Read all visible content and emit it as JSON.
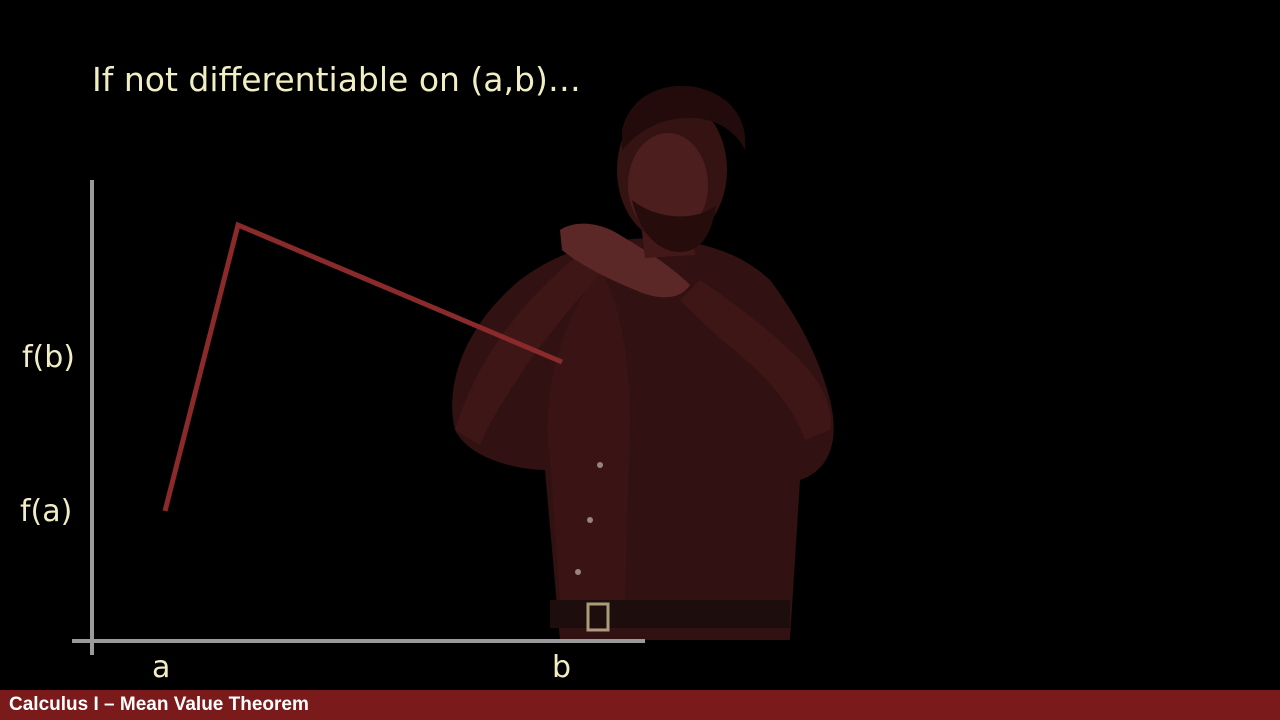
{
  "slide": {
    "title": "If not differentiable on (a,b)…",
    "ylabels": {
      "fb": "f(b)",
      "fa": "f(a)"
    },
    "xlabels": {
      "a": "a",
      "b": "b"
    }
  },
  "footer": {
    "text": "Calculus I – Mean Value Theorem"
  },
  "colors": {
    "background": "#000000",
    "text": "#f2eec4",
    "axis": "#9a9a9a",
    "curve": "#8b2a2a",
    "footer": "#7a1a1a"
  },
  "presenter": {
    "icon": "presenter-silhouette"
  }
}
